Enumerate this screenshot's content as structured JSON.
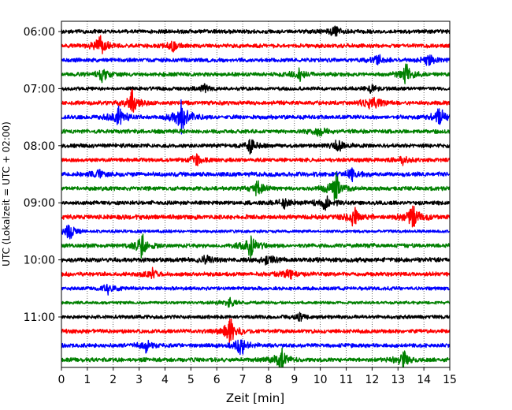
{
  "chart_data": {
    "type": "line",
    "title": "",
    "xlabel": "Zeit  [min]",
    "ylabel": "UTC (Lokalzeit = UTC + 02:00)",
    "xlim": [
      0,
      15
    ],
    "x_ticks": [
      "0",
      "1",
      "2",
      "3",
      "4",
      "5",
      "6",
      "7",
      "8",
      "9",
      "10",
      "11",
      "12",
      "13",
      "14",
      "15"
    ],
    "y_ticks": [
      "06:00",
      "07:00",
      "08:00",
      "09:00",
      "10:00",
      "11:00"
    ],
    "grid": {
      "vertical": true,
      "style": "dotted"
    },
    "trace_colors": [
      "#000000",
      "#ff0000",
      "#0000ff",
      "#008000"
    ],
    "row_minutes": 15,
    "rows": [
      {
        "start": "06:00",
        "color": "#000000",
        "amplitude": 0.25,
        "events": [
          {
            "x": 10.55,
            "amp": 0.65
          }
        ]
      },
      {
        "start": "06:15",
        "color": "#ff0000",
        "amplitude": 0.25,
        "events": [
          {
            "x": 1.5,
            "amp": 1.0
          },
          {
            "x": 4.3,
            "amp": 0.45
          }
        ]
      },
      {
        "start": "06:30",
        "color": "#0000ff",
        "amplitude": 0.25,
        "events": [
          {
            "x": 12.2,
            "amp": 0.5
          },
          {
            "x": 14.2,
            "amp": 0.55
          }
        ]
      },
      {
        "start": "06:45",
        "color": "#008000",
        "amplitude": 0.25,
        "events": [
          {
            "x": 1.6,
            "amp": 0.6
          },
          {
            "x": 9.2,
            "amp": 0.5
          },
          {
            "x": 13.3,
            "amp": 0.9
          }
        ]
      },
      {
        "start": "07:00",
        "color": "#000000",
        "amplitude": 0.22,
        "events": [
          {
            "x": 5.5,
            "amp": 0.4
          },
          {
            "x": 12.0,
            "amp": 0.35
          }
        ]
      },
      {
        "start": "07:15",
        "color": "#ff0000",
        "amplitude": 0.25,
        "events": [
          {
            "x": 2.7,
            "amp": 1.1
          },
          {
            "x": 12.0,
            "amp": 1.0
          }
        ]
      },
      {
        "start": "07:30",
        "color": "#0000ff",
        "amplitude": 0.25,
        "events": [
          {
            "x": 2.2,
            "amp": 1.0
          },
          {
            "x": 4.65,
            "amp": 1.8
          },
          {
            "x": 14.6,
            "amp": 0.9
          }
        ]
      },
      {
        "start": "07:45",
        "color": "#008000",
        "amplitude": 0.25,
        "events": [
          {
            "x": 10.0,
            "amp": 0.5
          }
        ]
      },
      {
        "start": "08:00",
        "color": "#000000",
        "amplitude": 0.25,
        "events": [
          {
            "x": 7.3,
            "amp": 0.7
          },
          {
            "x": 10.7,
            "amp": 0.5
          }
        ]
      },
      {
        "start": "08:15",
        "color": "#ff0000",
        "amplitude": 0.25,
        "events": [
          {
            "x": 5.2,
            "amp": 0.5
          },
          {
            "x": 13.2,
            "amp": 0.4
          }
        ]
      },
      {
        "start": "08:30",
        "color": "#0000ff",
        "amplitude": 0.28,
        "events": [
          {
            "x": 11.2,
            "amp": 0.5
          },
          {
            "x": 1.4,
            "amp": 0.35
          }
        ]
      },
      {
        "start": "08:45",
        "color": "#008000",
        "amplitude": 0.25,
        "events": [
          {
            "x": 7.6,
            "amp": 0.7
          },
          {
            "x": 10.6,
            "amp": 1.35
          }
        ]
      },
      {
        "start": "09:00",
        "color": "#000000",
        "amplitude": 0.25,
        "events": [
          {
            "x": 8.6,
            "amp": 0.6
          },
          {
            "x": 10.2,
            "amp": 0.7
          }
        ]
      },
      {
        "start": "09:15",
        "color": "#ff0000",
        "amplitude": 0.28,
        "events": [
          {
            "x": 11.3,
            "amp": 0.8
          },
          {
            "x": 13.55,
            "amp": 1.3
          }
        ]
      },
      {
        "start": "09:30",
        "color": "#0000ff",
        "amplitude": 0.18,
        "events": [
          {
            "x": 0.3,
            "amp": 0.9
          }
        ]
      },
      {
        "start": "09:45",
        "color": "#008000",
        "amplitude": 0.25,
        "events": [
          {
            "x": 3.1,
            "amp": 1.0
          },
          {
            "x": 7.3,
            "amp": 1.0
          }
        ]
      },
      {
        "start": "10:00",
        "color": "#000000",
        "amplitude": 0.28,
        "events": [
          {
            "x": 8.0,
            "amp": 0.5
          },
          {
            "x": 5.6,
            "amp": 0.4
          }
        ]
      },
      {
        "start": "10:15",
        "color": "#ff0000",
        "amplitude": 0.25,
        "events": [
          {
            "x": 3.5,
            "amp": 0.45
          },
          {
            "x": 8.8,
            "amp": 0.55
          }
        ]
      },
      {
        "start": "10:30",
        "color": "#0000ff",
        "amplitude": 0.22,
        "events": [
          {
            "x": 1.8,
            "amp": 0.5
          }
        ]
      },
      {
        "start": "10:45",
        "color": "#008000",
        "amplitude": 0.18,
        "events": [
          {
            "x": 6.5,
            "amp": 0.5
          }
        ]
      },
      {
        "start": "11:00",
        "color": "#000000",
        "amplitude": 0.22,
        "events": [
          {
            "x": 9.2,
            "amp": 0.35
          }
        ]
      },
      {
        "start": "11:15",
        "color": "#ff0000",
        "amplitude": 0.25,
        "events": [
          {
            "x": 6.5,
            "amp": 1.3
          }
        ]
      },
      {
        "start": "11:30",
        "color": "#0000ff",
        "amplitude": 0.25,
        "events": [
          {
            "x": 3.3,
            "amp": 0.6
          },
          {
            "x": 6.95,
            "amp": 1.0
          }
        ]
      },
      {
        "start": "11:45",
        "color": "#008000",
        "amplitude": 0.25,
        "events": [
          {
            "x": 8.45,
            "amp": 1.3
          },
          {
            "x": 13.2,
            "amp": 0.8
          }
        ]
      }
    ]
  }
}
